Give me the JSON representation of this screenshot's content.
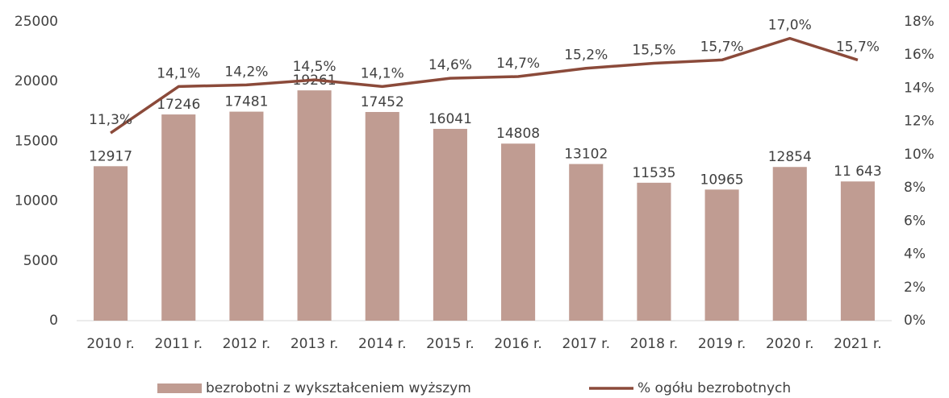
{
  "chart_data": {
    "type": "bar_line",
    "categories": [
      "2010 r.",
      "2011 r.",
      "2012 r.",
      "2013 r.",
      "2014 r.",
      "2015 r.",
      "2016 r.",
      "2017 r.",
      "2018 r.",
      "2019 r.",
      "2020 r.",
      "2021 r."
    ],
    "series": [
      {
        "name": "bezrobotni z wykształceniem wyższym",
        "type": "bar",
        "color": "#c09c92",
        "values": [
          12917,
          17246,
          17481,
          19261,
          17452,
          16041,
          14808,
          13102,
          11535,
          10965,
          12854,
          11643
        ],
        "value_labels": [
          "12917",
          "17246",
          "17481",
          "19261",
          "17452",
          "16041",
          "14808",
          "13102",
          "11535",
          "10965",
          "12854",
          "11 643"
        ]
      },
      {
        "name": "% ogółu bezrobotnych",
        "type": "line",
        "color": "#8b4a3a",
        "axis": "y2",
        "values": [
          11.3,
          14.1,
          14.2,
          14.5,
          14.1,
          14.6,
          14.7,
          15.2,
          15.5,
          15.7,
          17.0,
          15.7
        ],
        "value_labels": [
          "11,3%",
          "14,1%",
          "14,2%",
          "14,5%",
          "14,1%",
          "14,6%",
          "14,7%",
          "15,2%",
          "15,5%",
          "15,7%",
          "17,0%",
          "15,7%"
        ]
      }
    ],
    "ylim": [
      0,
      25000
    ],
    "yticks": [
      0,
      5000,
      10000,
      15000,
      20000,
      25000
    ],
    "y2lim": [
      0,
      18
    ],
    "y2ticks": [
      {
        "value": 0,
        "label": "0%"
      },
      {
        "value": 2,
        "label": "2%"
      },
      {
        "value": 4,
        "label": "4%"
      },
      {
        "value": 6,
        "label": "6%"
      },
      {
        "value": 8,
        "label": "8%"
      },
      {
        "value": 10,
        "label": "10%"
      },
      {
        "value": 12,
        "label": "12%"
      },
      {
        "value": 14,
        "label": "14%"
      },
      {
        "value": 16,
        "label": "16%"
      },
      {
        "value": 18,
        "label": "18%"
      }
    ],
    "legend": "bottom"
  }
}
